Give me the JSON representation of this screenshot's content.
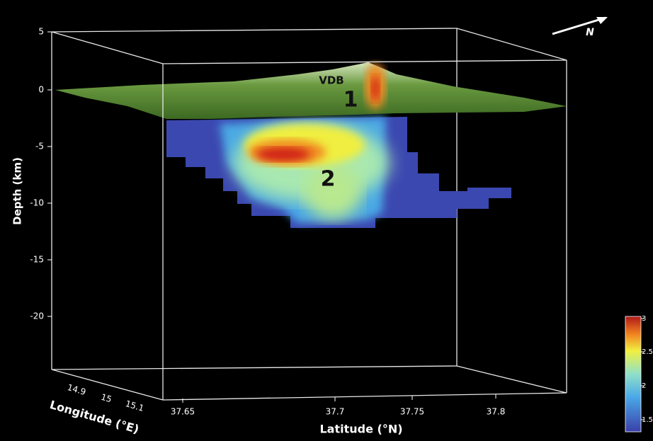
{
  "depth_axis": {
    "label": "Depth (km)",
    "ticks": [
      "5",
      "0",
      "-5",
      "-10",
      "-15",
      "-20"
    ]
  },
  "latitude_axis": {
    "label": "Latitude (°N)",
    "ticks": [
      "37.65",
      "37.7",
      "37.75",
      "37.8"
    ]
  },
  "longitude_axis": {
    "label": "Longitude (°E)",
    "ticks": [
      "14.9",
      "15",
      "15.1"
    ]
  },
  "annotations": [
    "VDB",
    "1",
    "2"
  ],
  "north_arrow": "N",
  "colorbar": {
    "ticks": [
      "3",
      "2.5",
      "2",
      "1.5"
    ]
  }
}
